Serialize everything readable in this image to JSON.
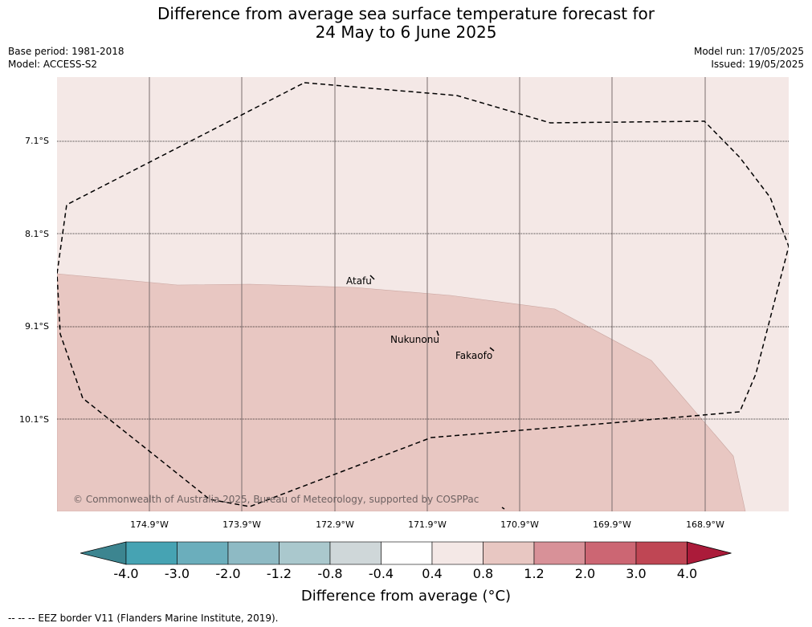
{
  "header": {
    "title_line1": "Difference from average sea surface temperature forecast for",
    "title_line2": "24 May to 6 June 2025",
    "base_period": "Base period: 1981-2018",
    "model": "Model: ACCESS-S2",
    "model_run": "Model run: 17/05/2025",
    "issued": "Issued: 19/05/2025"
  },
  "map": {
    "latitude_labels": [
      "7.1°S",
      "8.1°S",
      "9.1°S",
      "10.1°S"
    ],
    "longitude_labels": [
      "174.9°W",
      "173.9°W",
      "172.9°W",
      "171.9°W",
      "170.9°W",
      "169.9°W",
      "168.9°W"
    ],
    "places": [
      {
        "name": "Atafu"
      },
      {
        "name": "Nukunonu"
      },
      {
        "name": "Fakaofo"
      }
    ],
    "copyright": "© Commonwealth of Australia 2025, Bureau of Meteorology, supported by COSPPac",
    "colors": {
      "background_class": "#f4e8e6",
      "warm_class": "#e8c7c2",
      "gridline": "#7a6e6e"
    }
  },
  "colorbar": {
    "tick_labels": [
      "-4.0",
      "-3.0",
      "-2.0",
      "-1.2",
      "-0.8",
      "-0.4",
      "0.4",
      "0.8",
      "1.2",
      "2.0",
      "3.0",
      "4.0"
    ],
    "colors": [
      "#3c8590",
      "#46a3b3",
      "#6baebc",
      "#8ebac4",
      "#aac8cd",
      "#cfd7d9",
      "#ffffff",
      "#f4e8e6",
      "#e8c7c2",
      "#d89198",
      "#cc6673",
      "#bf4654",
      "#ab1b3a"
    ],
    "title": "Difference from average (°C)"
  },
  "legend": {
    "eez_text": "--  --  -- EEZ border V11 (Flanders Marine Institute, 2019)."
  }
}
